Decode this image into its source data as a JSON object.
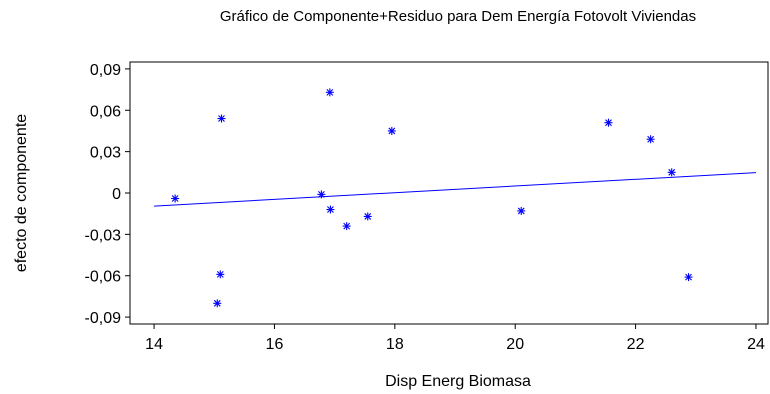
{
  "chart_data": {
    "type": "scatter",
    "title": "Gráfico de Componente+Residuo para Dem Energía Fotovolt Viviendas",
    "xlabel": "Disp Energ Biomasa",
    "ylabel": "efecto de componente",
    "xlim": [
      13.6,
      24.2
    ],
    "ylim": [
      -0.095,
      0.095
    ],
    "x_ticks": [
      14,
      16,
      18,
      20,
      22,
      24
    ],
    "x_tick_labels": [
      "14",
      "16",
      "18",
      "20",
      "22",
      "24"
    ],
    "y_ticks": [
      0.09,
      0.06,
      0.03,
      0,
      -0.03,
      -0.06,
      -0.09
    ],
    "y_tick_labels": [
      "0,09",
      "0,06",
      "0,03",
      "0",
      "-0,03",
      "-0,06",
      "-0,09"
    ],
    "grid": false,
    "marker": "asterisk",
    "series": [
      {
        "points": [
          {
            "x": 14.35,
            "y": -0.004
          },
          {
            "x": 15.05,
            "y": -0.08
          },
          {
            "x": 15.1,
            "y": -0.059
          },
          {
            "x": 15.12,
            "y": 0.054
          },
          {
            "x": 16.78,
            "y": -0.001
          },
          {
            "x": 16.92,
            "y": 0.073
          },
          {
            "x": 16.93,
            "y": -0.012
          },
          {
            "x": 17.2,
            "y": -0.024
          },
          {
            "x": 17.55,
            "y": -0.017
          },
          {
            "x": 17.95,
            "y": 0.045
          },
          {
            "x": 20.1,
            "y": -0.013
          },
          {
            "x": 21.55,
            "y": 0.051
          },
          {
            "x": 22.25,
            "y": 0.039
          },
          {
            "x": 22.6,
            "y": 0.015
          },
          {
            "x": 22.88,
            "y": -0.061
          }
        ]
      }
    ],
    "fit_line": {
      "x": [
        14.0,
        24.0
      ],
      "y": [
        -0.0095,
        0.0148
      ]
    },
    "colors": {
      "points": "#0000ff",
      "line": "#0000ff",
      "axis": "#000000"
    }
  }
}
